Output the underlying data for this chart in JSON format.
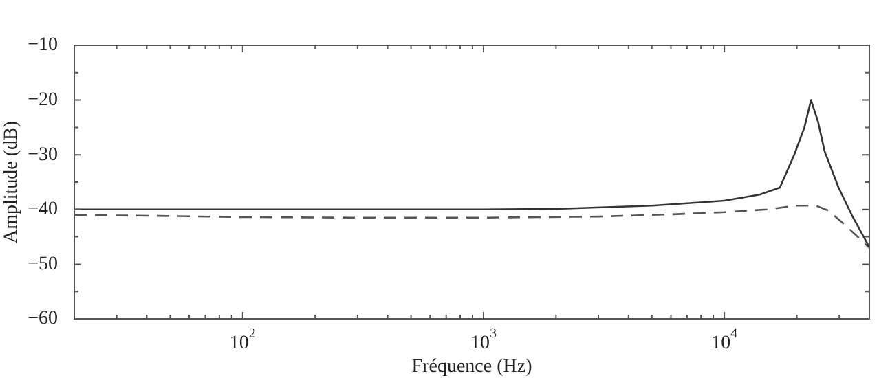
{
  "chart_data": {
    "type": "line",
    "xlabel": "Fréquence (Hz)",
    "ylabel": "Amplitude (dB)",
    "log": "x",
    "grid": false,
    "legend": false,
    "marker": "none",
    "xlim": [
      20,
      40000
    ],
    "ylim": [
      -60,
      -10
    ],
    "xticks": [
      {
        "value": 20,
        "label": null
      },
      {
        "value": 30,
        "label": null
      },
      {
        "value": 40,
        "label": null
      },
      {
        "value": 50,
        "label": null
      },
      {
        "value": 60,
        "label": null
      },
      {
        "value": 70,
        "label": null
      },
      {
        "value": 80,
        "label": null
      },
      {
        "value": 90,
        "label": null
      },
      {
        "value": 100,
        "label": "10$^{2}$"
      },
      {
        "value": 200,
        "label": null
      },
      {
        "value": 300,
        "label": null
      },
      {
        "value": 400,
        "label": null
      },
      {
        "value": 500,
        "label": null
      },
      {
        "value": 600,
        "label": null
      },
      {
        "value": 700,
        "label": null
      },
      {
        "value": 800,
        "label": null
      },
      {
        "value": 900,
        "label": null
      },
      {
        "value": 1000,
        "label": "10$^{3}$"
      },
      {
        "value": 2000,
        "label": null
      },
      {
        "value": 3000,
        "label": null
      },
      {
        "value": 4000,
        "label": null
      },
      {
        "value": 5000,
        "label": null
      },
      {
        "value": 6000,
        "label": null
      },
      {
        "value": 7000,
        "label": null
      },
      {
        "value": 8000,
        "label": null
      },
      {
        "value": 9000,
        "label": null
      },
      {
        "value": 10000,
        "label": "10$^{4}$"
      },
      {
        "value": 20000,
        "label": null
      },
      {
        "value": 30000,
        "label": null
      },
      {
        "value": 40000,
        "label": null
      }
    ],
    "yticks": [
      -60,
      {
        "value": -55,
        "label": null
      },
      -50,
      {
        "value": -45,
        "label": null
      },
      -40,
      {
        "value": -35,
        "label": null
      },
      -30,
      {
        "value": -25,
        "label": null
      },
      -20,
      {
        "value": -15,
        "label": null
      },
      -10
    ],
    "series": [
      {
        "color": "#333333",
        "line_style": "solid",
        "x": [
          20,
          100,
          1000,
          2000,
          5000,
          8000,
          10000,
          14000,
          17000,
          19500,
          21500,
          22900,
          24500,
          26100,
          29800,
          33800,
          40000
        ],
        "values": [
          -40,
          -40,
          -40,
          -39.9,
          -39.3,
          -38.7,
          -38.4,
          -37.3,
          -36,
          -30,
          -25,
          -20,
          -24,
          -29.4,
          -36,
          -41,
          -46.9
        ]
      },
      {
        "color": "#555555",
        "line_style": "dashed",
        "x": [
          20,
          50,
          100,
          300,
          1000,
          3000,
          6000,
          10000,
          15000,
          20000,
          24000,
          27000,
          32000,
          40000
        ],
        "values": [
          -41,
          -41.2,
          -41.4,
          -41.5,
          -41.5,
          -41.3,
          -40.9,
          -40.5,
          -40,
          -39.3,
          -39.3,
          -40.2,
          -43,
          -47
        ]
      }
    ]
  }
}
